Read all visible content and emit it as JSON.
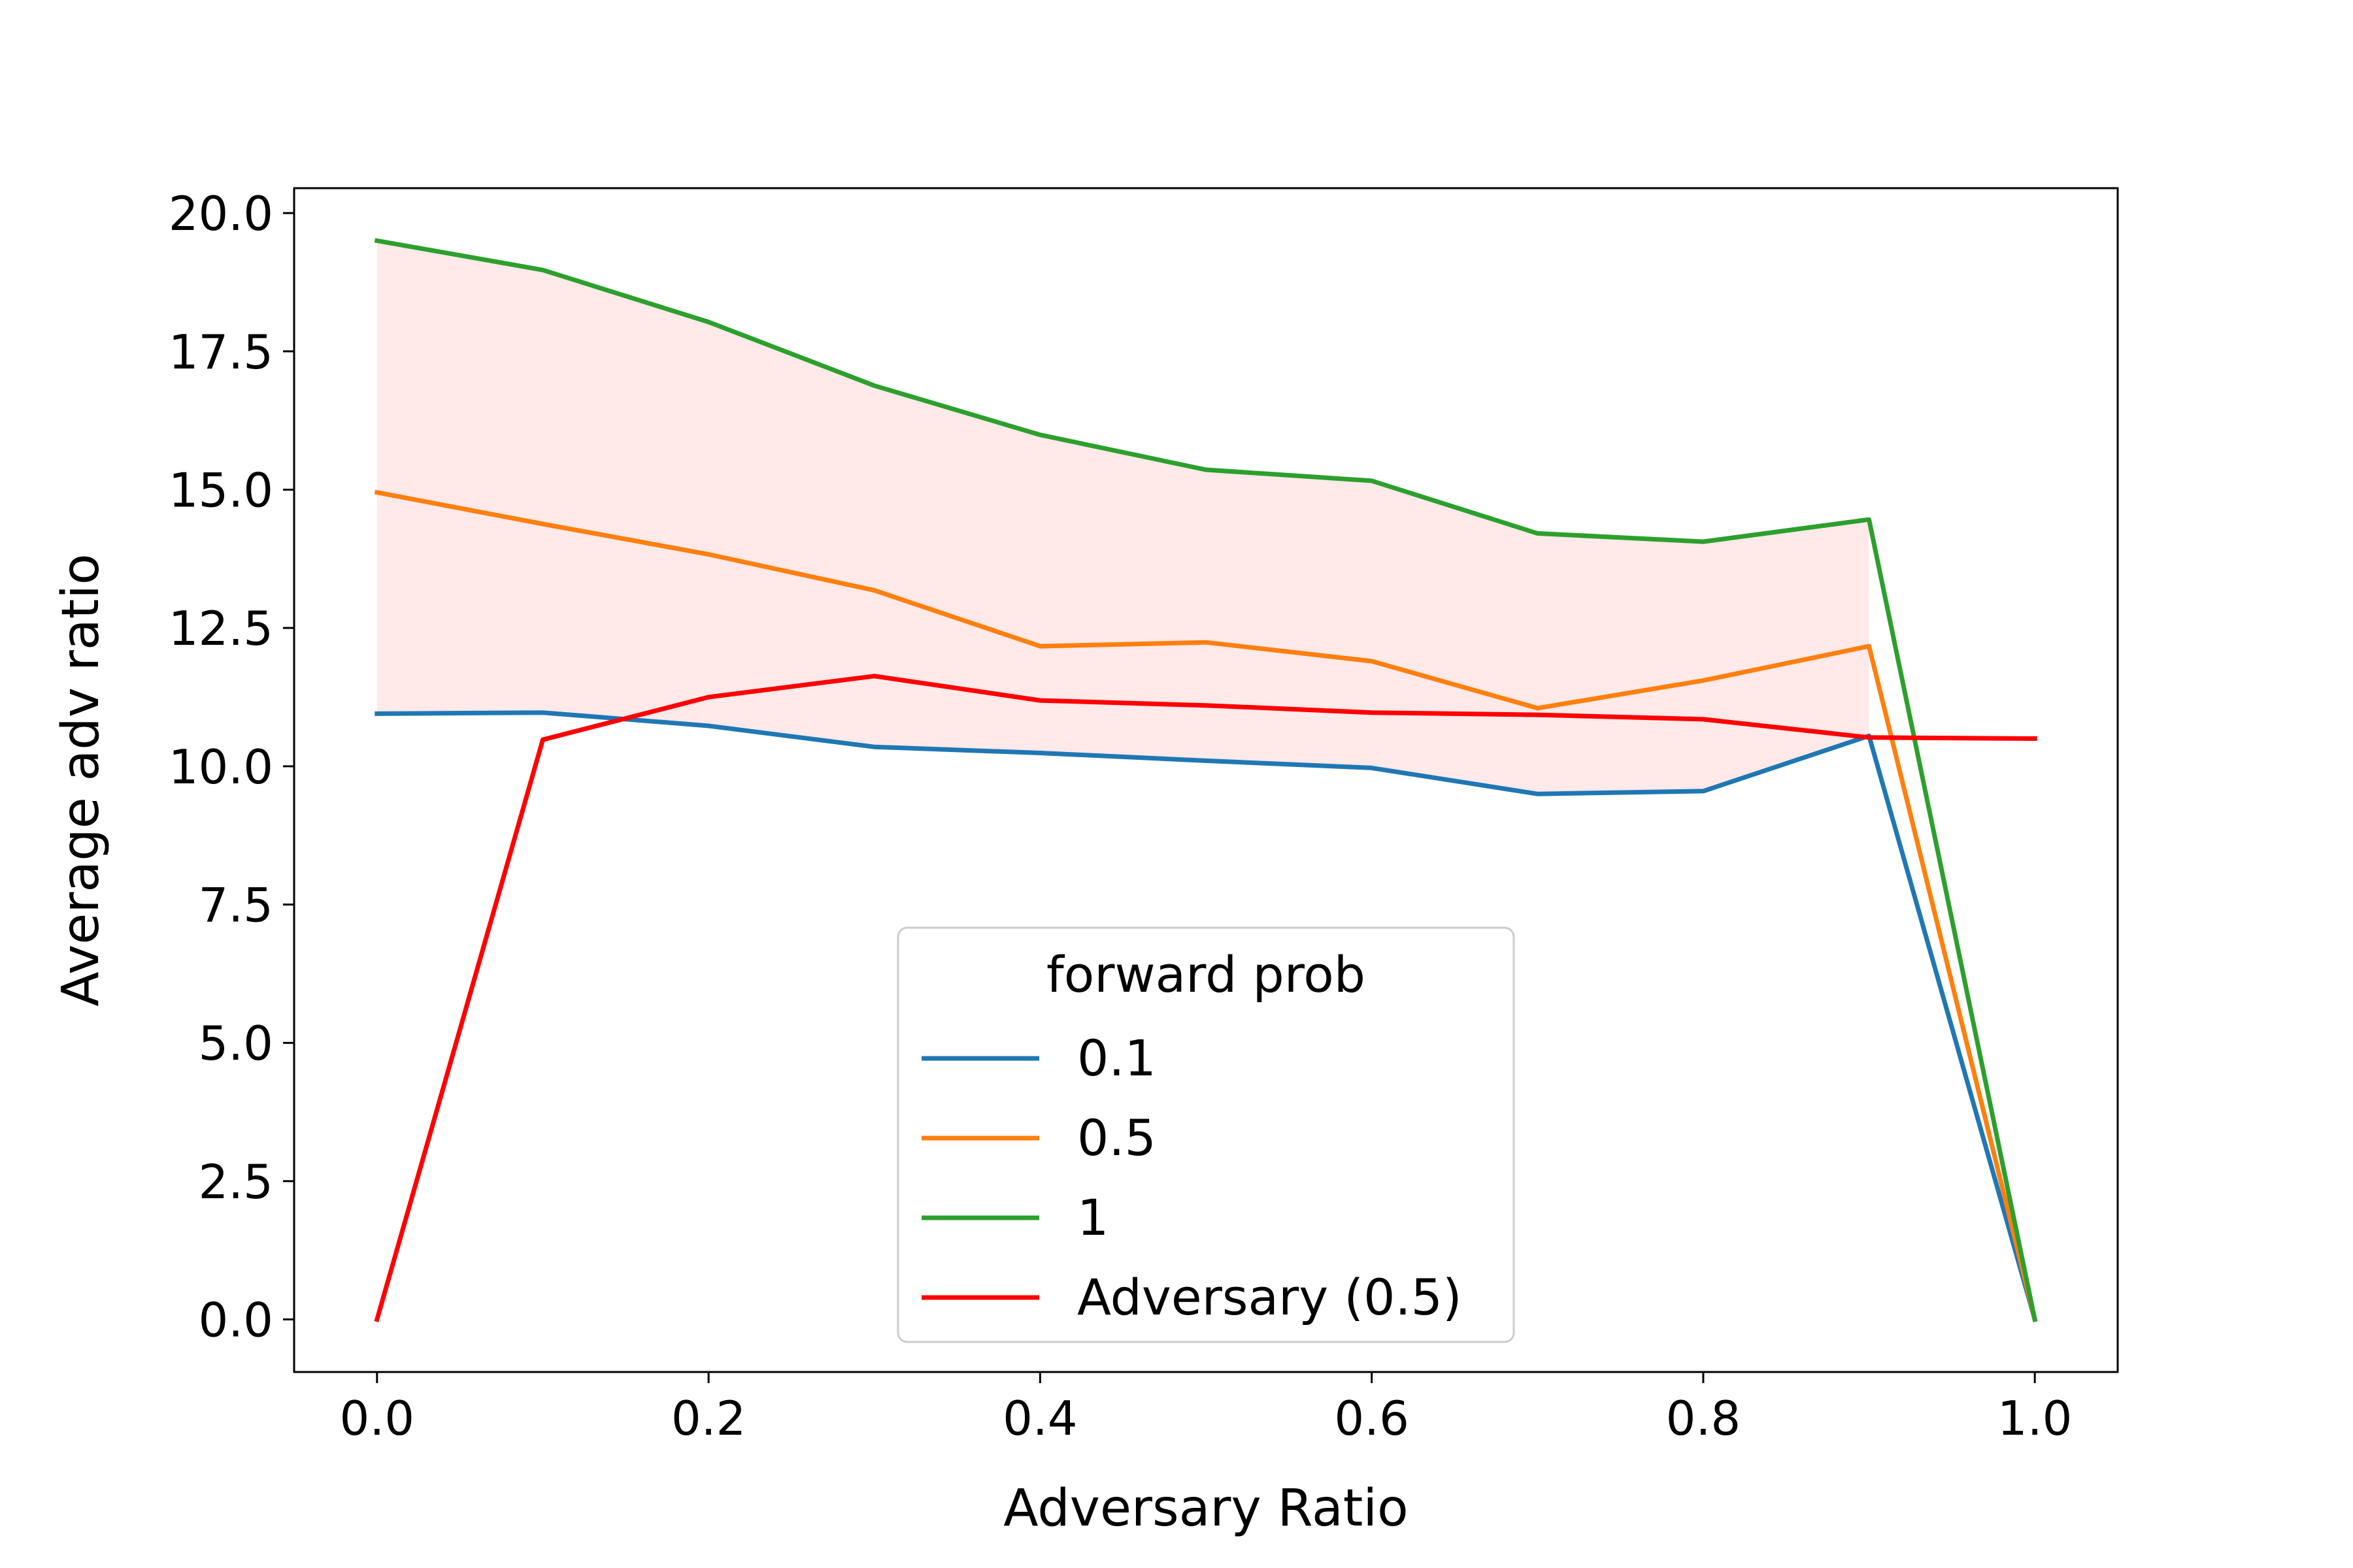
{
  "chart_data": {
    "type": "line",
    "title": "",
    "xlabel": "Adversary Ratio",
    "ylabel": "Average adv ratio",
    "xlim": [
      -0.05,
      1.05
    ],
    "ylim": [
      -0.95,
      20.45
    ],
    "xticks": [
      0.0,
      0.2,
      0.4,
      0.6,
      0.8,
      1.0
    ],
    "xtick_labels": [
      "0.0",
      "0.2",
      "0.4",
      "0.6",
      "0.8",
      "1.0"
    ],
    "yticks": [
      0.0,
      2.5,
      5.0,
      7.5,
      10.0,
      12.5,
      15.0,
      17.5,
      20.0
    ],
    "ytick_labels": [
      "0.0",
      "2.5",
      "5.0",
      "7.5",
      "10.0",
      "12.5",
      "15.0",
      "17.5",
      "20.0"
    ],
    "grid": false,
    "x": [
      0.0,
      0.1,
      0.2,
      0.3,
      0.4,
      0.5,
      0.6,
      0.7,
      0.8,
      0.9,
      1.0
    ],
    "series": [
      {
        "name": "0.1",
        "color": "#1f77b4",
        "values": [
          10.95,
          10.97,
          10.73,
          10.35,
          10.24,
          10.1,
          9.97,
          9.5,
          9.55,
          10.55,
          0.0
        ]
      },
      {
        "name": "0.5",
        "color": "#ff7f0e",
        "values": [
          14.95,
          14.38,
          13.83,
          13.18,
          12.17,
          12.24,
          11.9,
          11.05,
          11.55,
          12.17,
          0.0
        ]
      },
      {
        "name": "1",
        "color": "#2ca02c",
        "values": [
          19.5,
          18.97,
          18.03,
          16.88,
          15.99,
          15.36,
          15.16,
          14.21,
          14.06,
          14.46,
          0.0
        ]
      },
      {
        "name": "Adversary (0.5)",
        "color": "#ff0000",
        "values": [
          0.0,
          10.48,
          11.25,
          11.63,
          11.19,
          11.1,
          10.97,
          10.93,
          10.85,
          10.52,
          10.5
        ]
      }
    ],
    "band": {
      "lower_series": "0.1",
      "upper_series": "1",
      "x_end": 0.9,
      "color": "#ffc8c8",
      "opacity": 0.4
    },
    "legend": {
      "title": "forward prob",
      "placement": "lower-center"
    }
  }
}
